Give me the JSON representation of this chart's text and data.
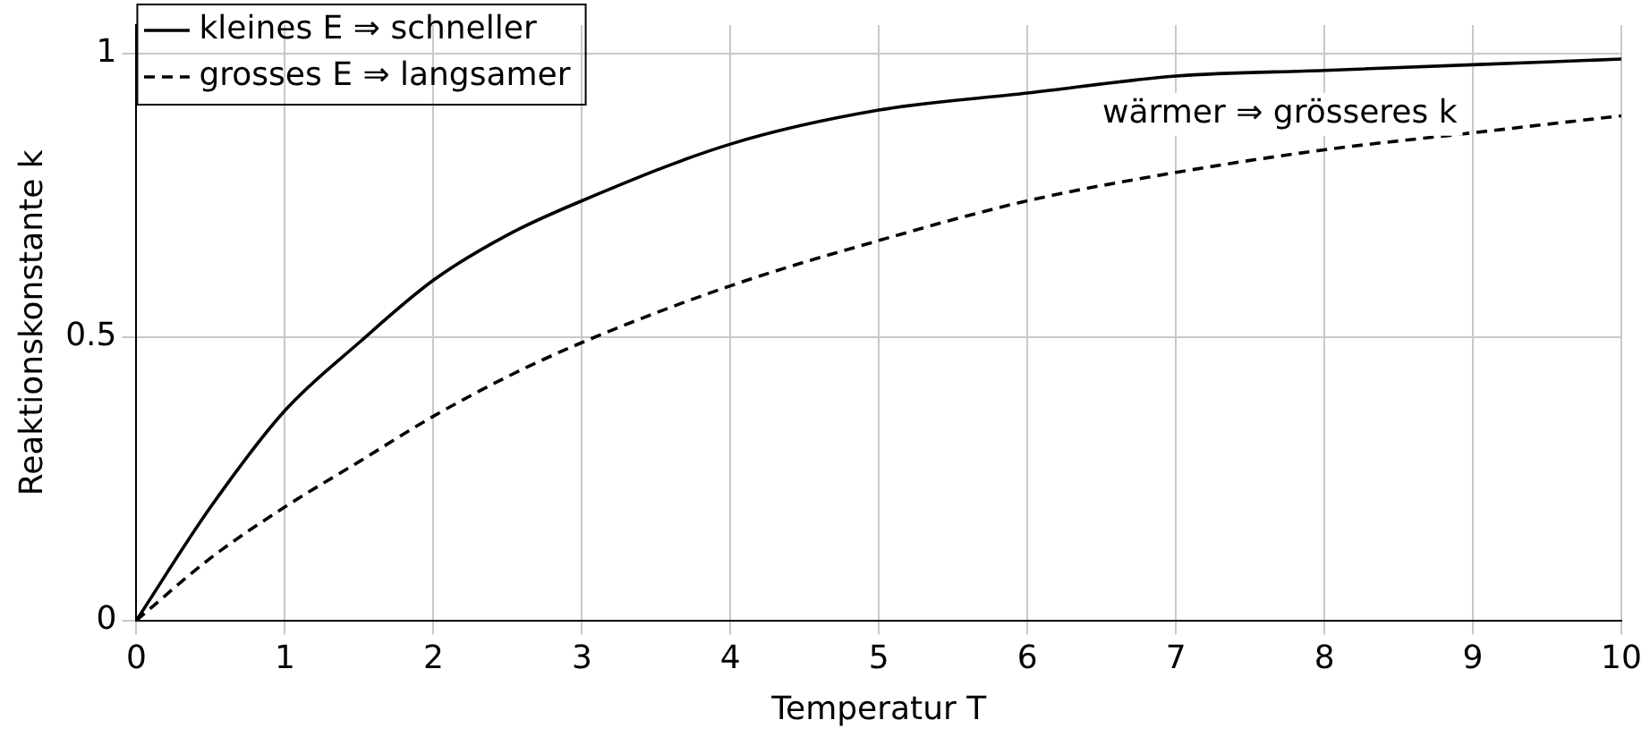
{
  "chart_data": {
    "type": "line",
    "xlabel": "Temperatur T",
    "ylabel": "Reaktionskonstante k",
    "x": [
      0,
      0.5,
      1,
      1.5,
      2,
      2.5,
      3,
      4,
      5,
      6,
      7,
      8,
      9,
      10
    ],
    "series": [
      {
        "name": "kleines E ⇒ schneller",
        "color": "#000000",
        "line_style": "solid",
        "values": [
          0,
          0.2,
          0.37,
          0.49,
          0.6,
          0.68,
          0.74,
          0.84,
          0.9,
          0.93,
          0.96,
          0.97,
          0.98,
          0.99
        ]
      },
      {
        "name": "grosses E ⇒ langsamer",
        "color": "#000000",
        "line_style": "dashed",
        "values": [
          0,
          0.11,
          0.2,
          0.28,
          0.36,
          0.43,
          0.49,
          0.59,
          0.67,
          0.74,
          0.79,
          0.83,
          0.86,
          0.89
        ]
      }
    ],
    "xlim": [
      0,
      10
    ],
    "xticks": [
      0,
      1,
      2,
      3,
      4,
      5,
      6,
      7,
      8,
      9,
      10
    ],
    "ylim": [
      0,
      1.05
    ],
    "yticks": [
      0,
      0.5,
      1
    ],
    "grid": true,
    "legend": "top left",
    "marker": "none",
    "annotations": [
      "wärmer ⇒ grösseres k"
    ]
  }
}
